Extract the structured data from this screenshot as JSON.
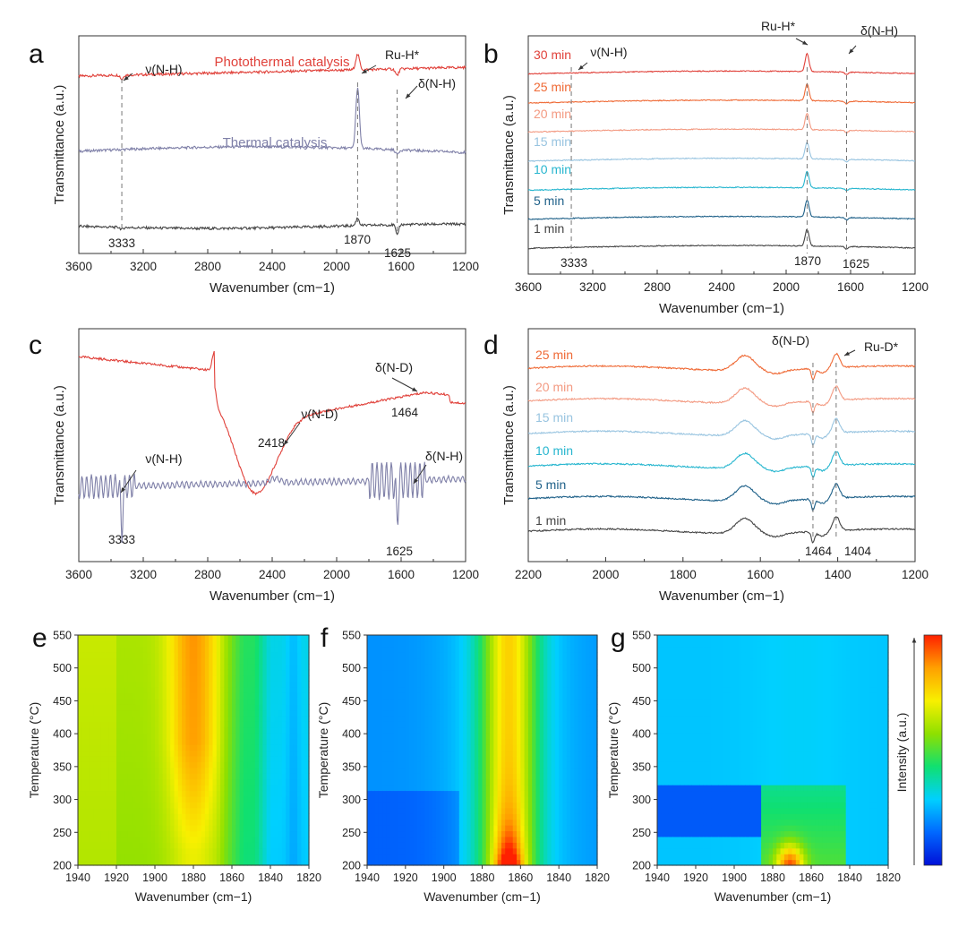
{
  "colors": {
    "red": "#e0413a",
    "orange": "#ef6a36",
    "salmon": "#f39a82",
    "ltblue": "#98c4e0",
    "cyan": "#27b6cf",
    "teal": "#1f6189",
    "gray": "#444444",
    "purple": "#7f80a8"
  },
  "colormap": [
    "#0010d8",
    "#0068ff",
    "#00d0ff",
    "#10e070",
    "#8ee000",
    "#f8f000",
    "#ffa000",
    "#ff2000"
  ],
  "chart_data": [
    {
      "panel": "a",
      "type": "line",
      "xlabel": "Wavenumber (cm−1)",
      "ylabel": "Transmittance (a.u.)",
      "xlim": [
        3600,
        1200
      ],
      "xticks": [
        "3600",
        "3200",
        "2800",
        "2400",
        "2000",
        "1600",
        "1200"
      ],
      "series": [
        {
          "name": "Photothermal catalysis",
          "color_key": "red"
        },
        {
          "name": "Thermal catalysis",
          "color_key": "purple"
        },
        {
          "name": "",
          "color_key": "gray"
        }
      ],
      "annotations": [
        "ν(N-H)",
        "Ru-H*",
        "δ(N-H)",
        "3333",
        "1870",
        "1625"
      ]
    },
    {
      "panel": "b",
      "type": "line",
      "xlabel": "Wavenumber (cm−1)",
      "ylabel": "Transmittance (a.u.)",
      "xlim": [
        3600,
        1200
      ],
      "xticks": [
        "3600",
        "3200",
        "2800",
        "2400",
        "2000",
        "1600",
        "1200"
      ],
      "series": [
        {
          "name": "30 min",
          "color_key": "red"
        },
        {
          "name": "25 min",
          "color_key": "orange"
        },
        {
          "name": "20 min",
          "color_key": "salmon"
        },
        {
          "name": "15 min",
          "color_key": "ltblue"
        },
        {
          "name": "10 min",
          "color_key": "cyan"
        },
        {
          "name": "5 min",
          "color_key": "teal"
        },
        {
          "name": "1 min",
          "color_key": "gray"
        }
      ],
      "annotations": [
        "ν(N-H)",
        "Ru-H*",
        "δ(N-H)",
        "3333",
        "1870",
        "1625"
      ]
    },
    {
      "panel": "c",
      "type": "line",
      "xlabel": "Wavenumber (cm−1)",
      "ylabel": "Transmittance (a.u.)",
      "xlim": [
        3600,
        1200
      ],
      "xticks": [
        "3600",
        "3200",
        "2800",
        "2400",
        "2000",
        "1600",
        "1200"
      ],
      "series": [
        {
          "color_key": "red"
        },
        {
          "color_key": "purple"
        }
      ],
      "annotations": [
        "ν(N-D)",
        "δ(N-D)",
        "2418",
        "1464",
        "ν(N-H)",
        "δ(N-H)",
        "3333",
        "1625"
      ]
    },
    {
      "panel": "d",
      "type": "line",
      "xlabel": "Wavenumber (cm−1)",
      "ylabel": "Transmittance (a.u.)",
      "xlim": [
        2200,
        1200
      ],
      "xticks": [
        "2200",
        "2000",
        "1800",
        "1600",
        "1400",
        "1200"
      ],
      "series": [
        {
          "name": "25 min",
          "color_key": "orange"
        },
        {
          "name": "20 min",
          "color_key": "salmon"
        },
        {
          "name": "15 min",
          "color_key": "ltblue"
        },
        {
          "name": "10 min",
          "color_key": "cyan"
        },
        {
          "name": "5 min",
          "color_key": "teal"
        },
        {
          "name": "1 min",
          "color_key": "gray"
        }
      ],
      "annotations": [
        "δ(N-D)",
        "Ru-D*",
        "1464",
        "1404"
      ]
    },
    {
      "panel": "e",
      "type": "heatmap",
      "xlabel": "Wavenumber (cm−1)",
      "ylabel": "Temperature (°C)",
      "xlim": [
        1940,
        1820
      ],
      "ylim": [
        200,
        550
      ],
      "xticks": [
        "1940",
        "1920",
        "1900",
        "1880",
        "1860",
        "1840",
        "1820"
      ],
      "yticks": [
        "200",
        "250",
        "300",
        "350",
        "400",
        "450",
        "500",
        "550"
      ]
    },
    {
      "panel": "f",
      "type": "heatmap",
      "xlabel": "Wavenumber (cm−1)",
      "ylabel": "Temperature (°C)",
      "xlim": [
        1940,
        1820
      ],
      "ylim": [
        200,
        550
      ],
      "xticks": [
        "1940",
        "1920",
        "1900",
        "1880",
        "1860",
        "1840",
        "1820"
      ],
      "yticks": [
        "200",
        "250",
        "300",
        "350",
        "400",
        "450",
        "500",
        "550"
      ]
    },
    {
      "panel": "g",
      "type": "heatmap",
      "xlabel": "Wavenumber (cm−1)",
      "ylabel": "Temperature (°C)",
      "xlim": [
        1940,
        1820
      ],
      "ylim": [
        200,
        550
      ],
      "xticks": [
        "1940",
        "1920",
        "1900",
        "1880",
        "1860",
        "1840",
        "1820"
      ],
      "yticks": [
        "200",
        "250",
        "300",
        "350",
        "400",
        "450",
        "500",
        "550"
      ],
      "colorbar_label": "Intensity (a.u.)"
    }
  ]
}
